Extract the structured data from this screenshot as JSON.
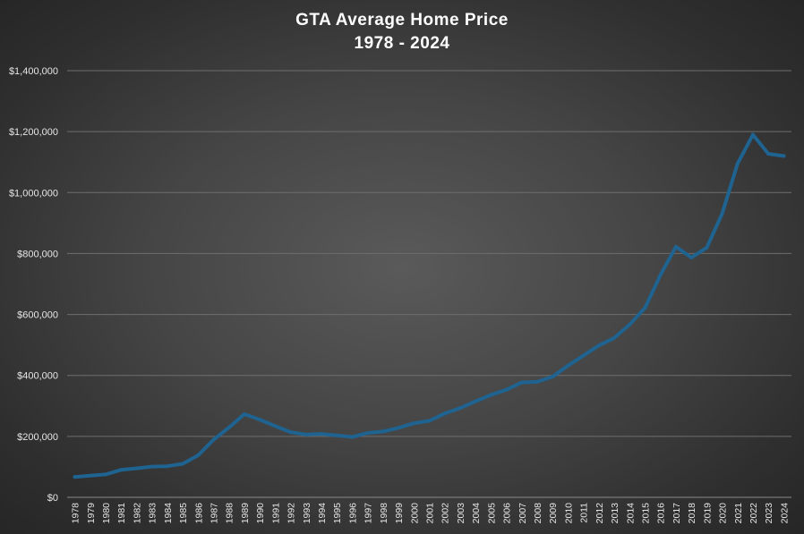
{
  "chart_data": {
    "type": "line",
    "title": "GTA Average Home Price",
    "subtitle": "1978 - 2024",
    "xlabel": "",
    "ylabel": "",
    "ylim": [
      0,
      1400000
    ],
    "y_ticks": [
      "$0",
      "$200,000",
      "$400,000",
      "$600,000",
      "$800,000",
      "$1,000,000",
      "$1,200,000",
      "$1,400,000"
    ],
    "y_tick_values": [
      0,
      200000,
      400000,
      600000,
      800000,
      1000000,
      1200000,
      1400000
    ],
    "grid": true,
    "categories": [
      "1978",
      "1979",
      "1980",
      "1981",
      "1982",
      "1983",
      "1984",
      "1985",
      "1986",
      "1987",
      "1988",
      "1989",
      "1990",
      "1991",
      "1992",
      "1993",
      "1994",
      "1995",
      "1996",
      "1997",
      "1998",
      "1999",
      "2000",
      "2001",
      "2002",
      "2003",
      "2004",
      "2005",
      "2006",
      "2007",
      "2008",
      "2009",
      "2010",
      "2011",
      "2012",
      "2013",
      "2014",
      "2015",
      "2016",
      "2017",
      "2018",
      "2019",
      "2020",
      "2021",
      "2022",
      "2023",
      "2024"
    ],
    "series": [
      {
        "color": "#1f6391",
        "values": [
          67000,
          71000,
          75000,
          90000,
          95000,
          101000,
          102000,
          110000,
          138000,
          189000,
          229000,
          273000,
          255000,
          234000,
          214000,
          206000,
          208000,
          203000,
          198000,
          211000,
          216000,
          228000,
          243000,
          251000,
          275000,
          293000,
          315000,
          336000,
          353000,
          377000,
          379000,
          396000,
          432000,
          465000,
          498000,
          523000,
          567000,
          622000,
          730000,
          822000,
          787000,
          819000,
          930000,
          1095000,
          1190000,
          1127000,
          1120000
        ]
      }
    ]
  }
}
